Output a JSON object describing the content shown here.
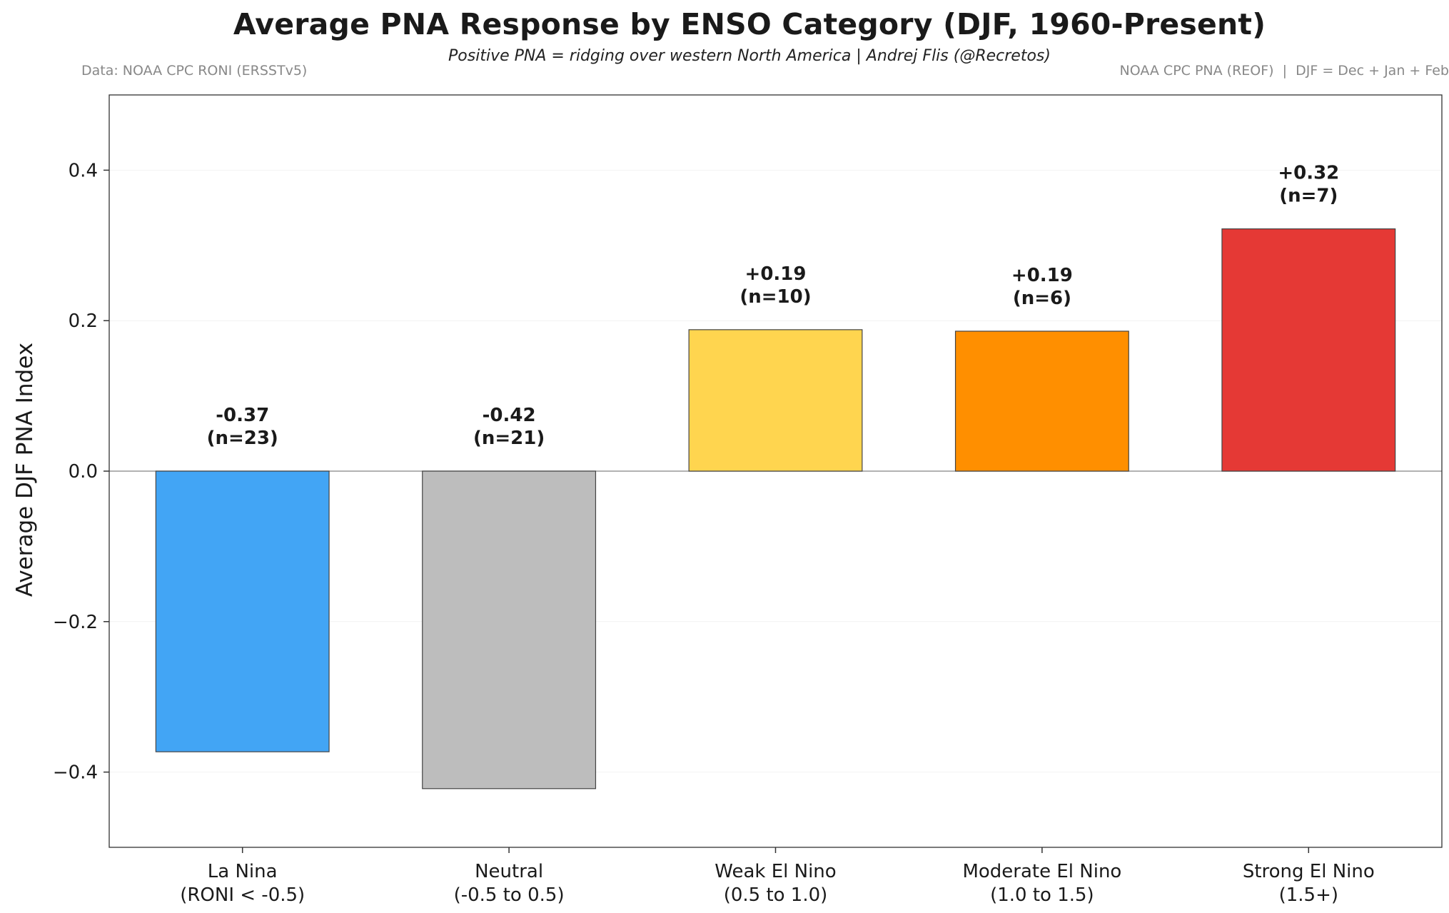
{
  "chart_data": {
    "type": "bar",
    "title": "Average PNA Response by ENSO Category (DJF, 1960-Present)",
    "subtitle": "Positive PNA = ridging over western North America | Andrej Flis (@Recretos)",
    "source_left": "Data: NOAA CPC RONI (ERSSTv5)",
    "source_right": "NOAA CPC PNA (REOF)  |  DJF = Dec + Jan + Feb",
    "ylabel": "Average DJF PNA Index",
    "xlabel": "",
    "ylim": [
      -0.5,
      0.5
    ],
    "yticks": [
      0.4,
      0.2,
      0.0,
      -0.2,
      -0.4
    ],
    "ytick_labels": [
      "0.4",
      "0.2",
      "0.0",
      "−0.2",
      "−0.4"
    ],
    "categories": [
      [
        "La Nina",
        "(RONI < -0.5)"
      ],
      [
        "Neutral",
        "(-0.5 to 0.5)"
      ],
      [
        "Weak El Nino",
        "(0.5 to 1.0)"
      ],
      [
        "Moderate El Nino",
        "(1.0 to 1.5)"
      ],
      [
        "Strong El Nino",
        "(1.5+)"
      ]
    ],
    "values": [
      -0.373,
      -0.422,
      0.188,
      0.186,
      0.322
    ],
    "value_labels": [
      "-0.37",
      "-0.42",
      "+0.19",
      "+0.19",
      "+0.32"
    ],
    "count_labels": [
      "(n=23)",
      "(n=21)",
      "(n=10)",
      "(n=6)",
      "(n=7)"
    ],
    "colors": [
      "#42a5f5",
      "#bdbdbd",
      "#ffd54f",
      "#ff8f00",
      "#e53935"
    ],
    "grid": false
  }
}
